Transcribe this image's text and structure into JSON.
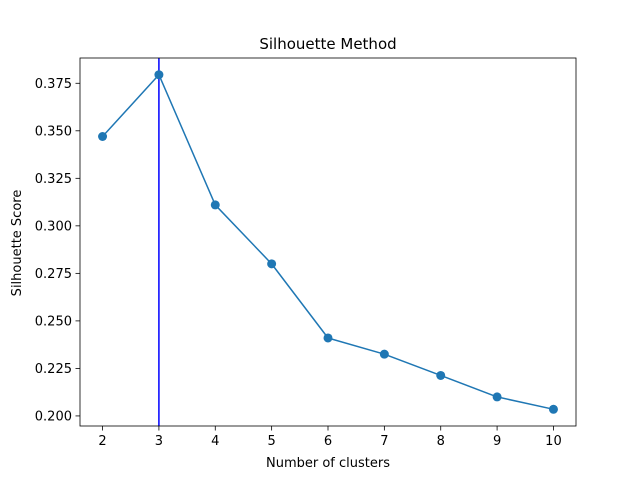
{
  "chart_data": {
    "type": "line",
    "title": "Silhouette Method",
    "xlabel": "Number of clusters",
    "ylabel": "Silhouette Score",
    "x": [
      2,
      3,
      4,
      5,
      6,
      7,
      8,
      9,
      10
    ],
    "series": [
      {
        "values": [
          0.347,
          0.3795,
          0.311,
          0.28,
          0.241,
          0.2325,
          0.2213,
          0.21,
          0.2035
        ],
        "color": "#1f77b4",
        "marker": "circle"
      }
    ],
    "vline": {
      "x": 3,
      "color": "#0000ff"
    },
    "xticks": [
      2,
      3,
      4,
      5,
      6,
      7,
      8,
      9,
      10
    ],
    "yticks": [
      0.2,
      0.225,
      0.25,
      0.275,
      0.3,
      0.325,
      0.35,
      0.375
    ],
    "ytick_labels": [
      "0.200",
      "0.225",
      "0.250",
      "0.275",
      "0.300",
      "0.325",
      "0.350",
      "0.375"
    ],
    "xlim": [
      1.6,
      10.4
    ],
    "ylim": [
      0.1947,
      0.3883
    ],
    "grid": false,
    "legend": "none"
  }
}
